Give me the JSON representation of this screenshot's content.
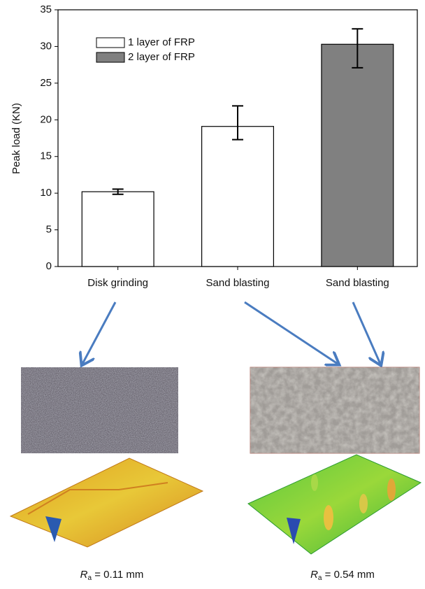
{
  "chart_data": {
    "type": "bar",
    "ylabel": "Peak load (KN)",
    "categories": [
      "Disk grinding",
      "Sand blasting",
      "Sand blasting"
    ],
    "series": [
      {
        "name": "1 layer of FRP",
        "color": "#ffffff",
        "values": [
          10.2,
          19.1,
          null
        ],
        "errors_minus": [
          0.35,
          1.8,
          null
        ],
        "errors_plus": [
          0.35,
          2.8,
          null
        ]
      },
      {
        "name": "2 layer of FRP",
        "color": "#808080",
        "values": [
          null,
          null,
          30.3
        ],
        "errors_minus": [
          null,
          null,
          3.2
        ],
        "errors_plus": [
          null,
          null,
          2.1
        ]
      }
    ],
    "ylim": [
      0,
      35
    ],
    "yticks": [
      0,
      5,
      10,
      15,
      20,
      25,
      30,
      35
    ],
    "grid": false,
    "legend": "upper-left"
  },
  "captions": [
    {
      "symbol": "R",
      "subscript": "a",
      "text": " = 0.11 mm"
    },
    {
      "symbol": "R",
      "subscript": "a",
      "text": " = 0.54 mm"
    }
  ]
}
